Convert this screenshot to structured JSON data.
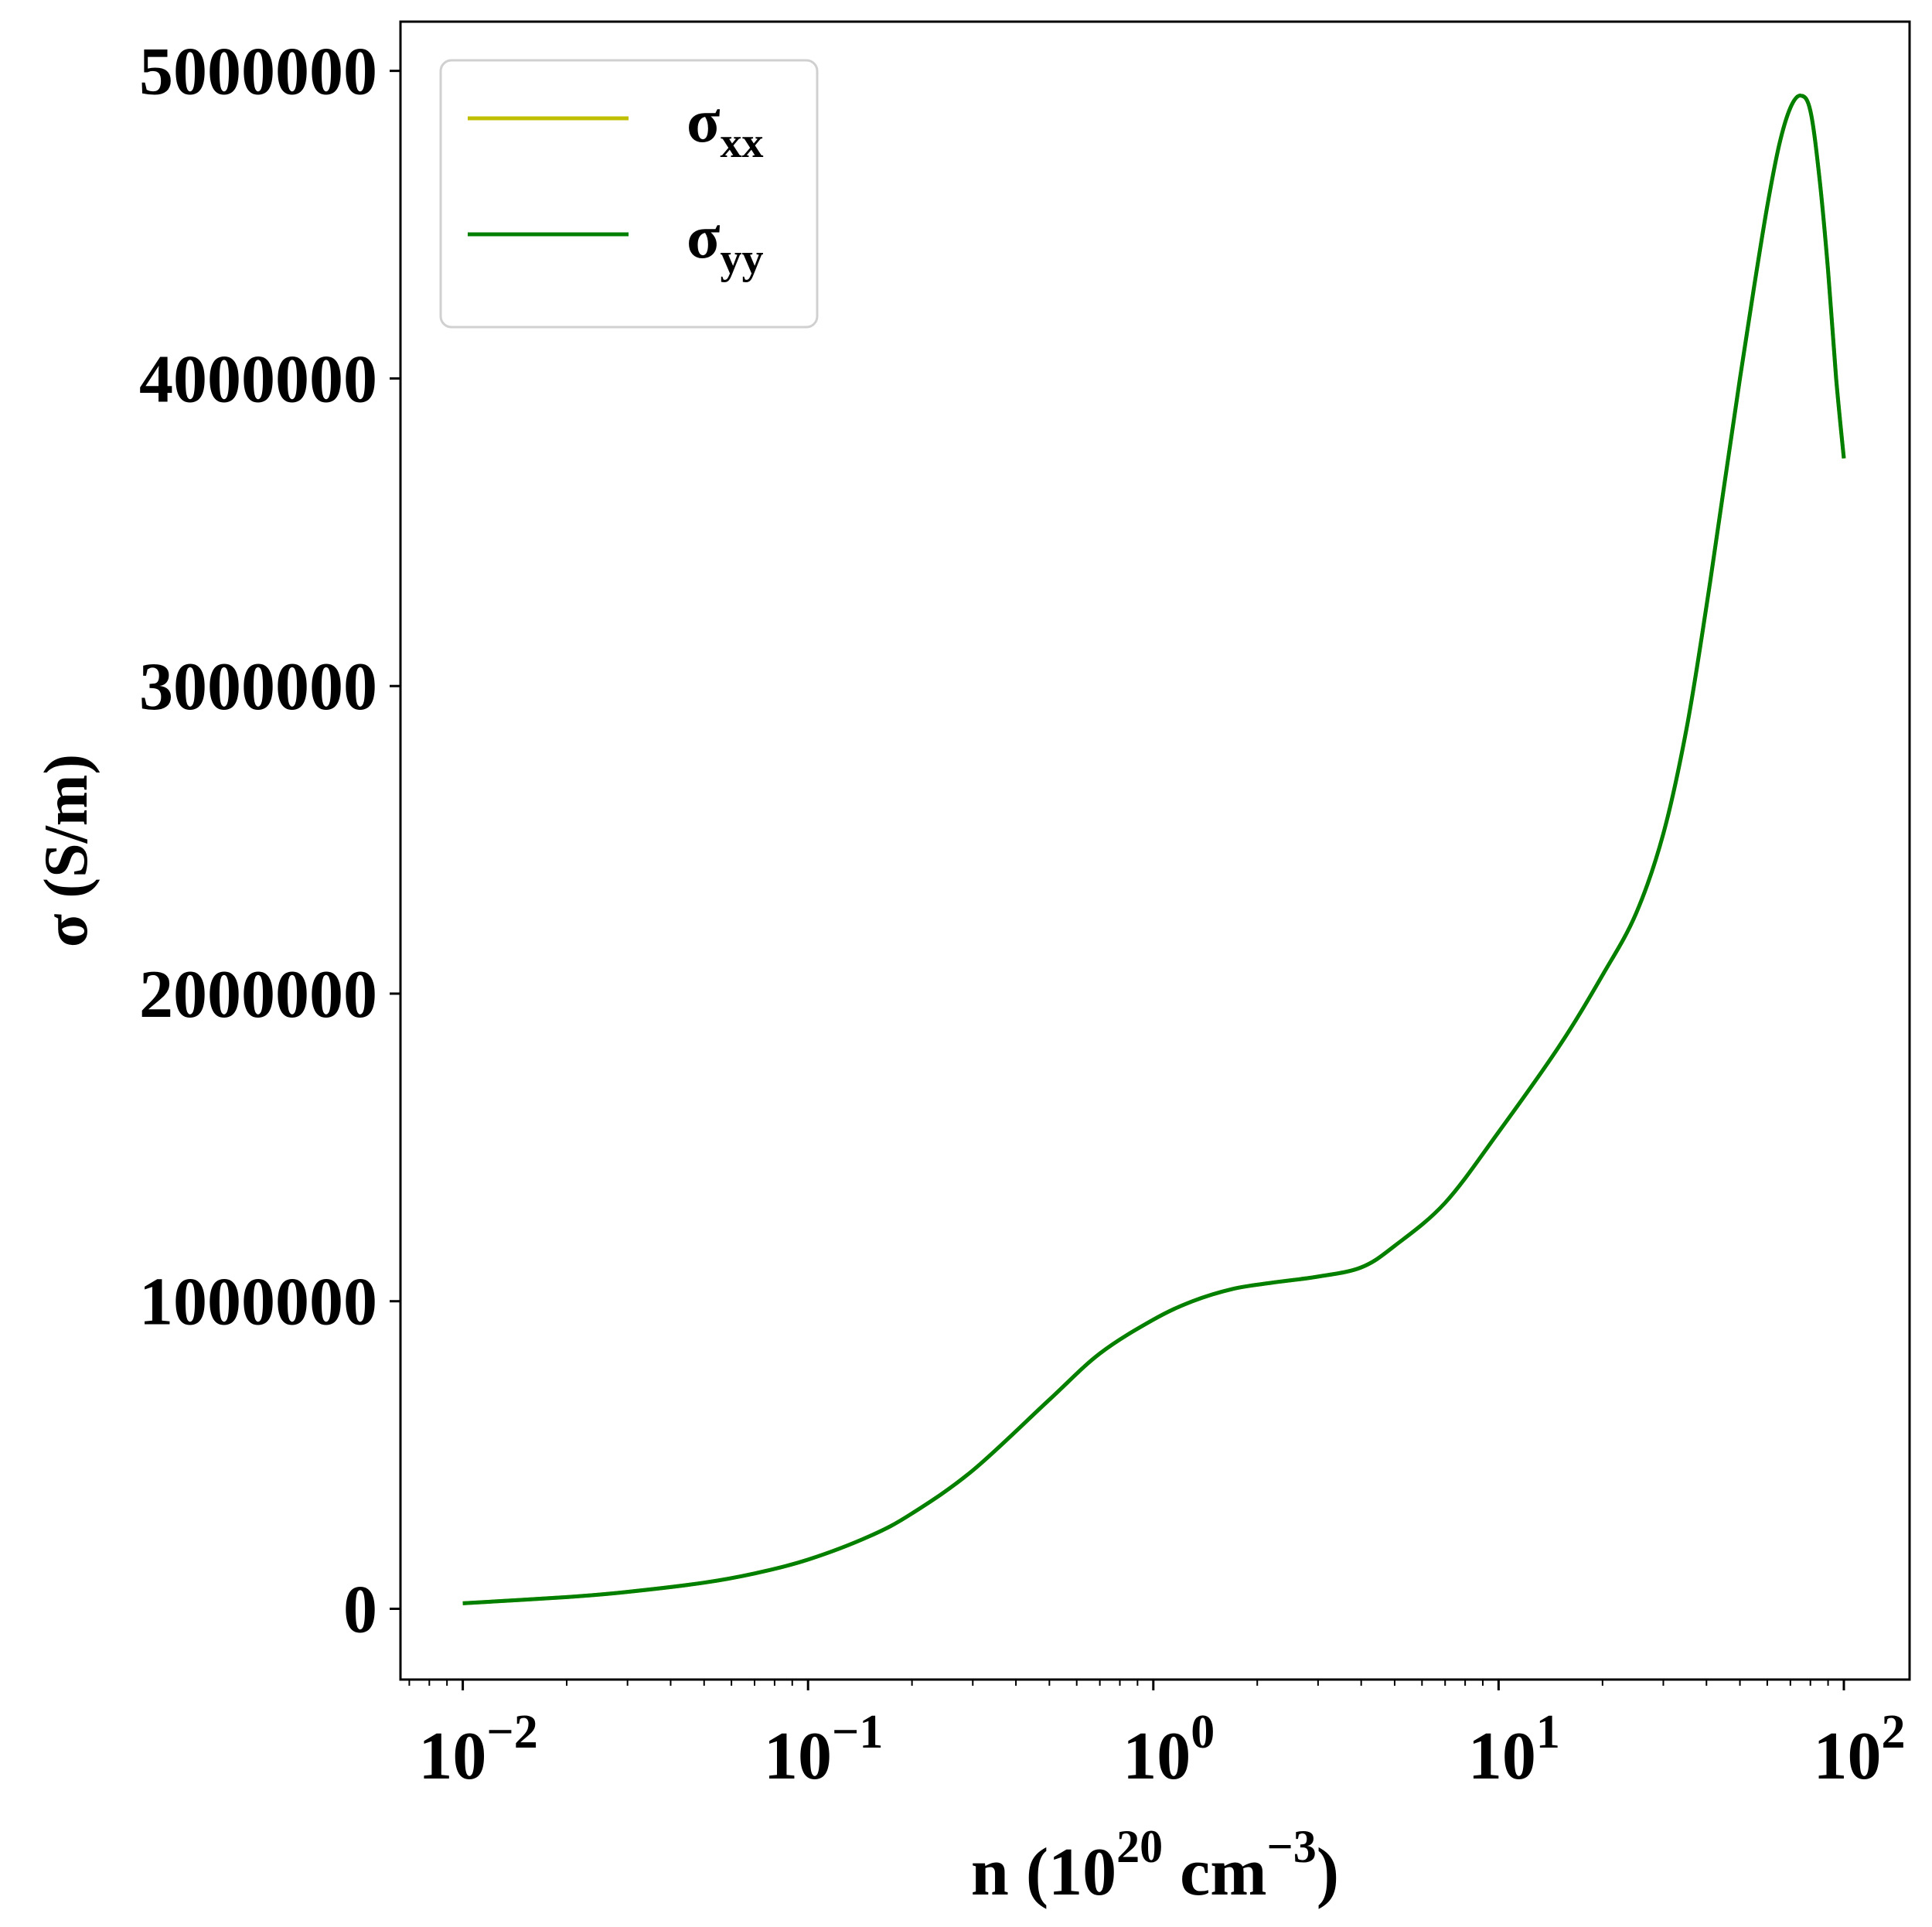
{
  "chart_data": {
    "type": "line",
    "title": "",
    "xlabel": {
      "base": "n (10",
      "sup1": "20",
      "mid": " cm",
      "sup2": "−3",
      "end": ")"
    },
    "ylabel": "σ (S/m)",
    "xscale": "log",
    "xlim": [
      0.0066,
      155
    ],
    "ylim": [
      -230000,
      5160000
    ],
    "grid": false,
    "legend_position": "top-left",
    "x_ticks": [
      {
        "value": 0.01,
        "base": "10",
        "exp": "−2"
      },
      {
        "value": 0.1,
        "base": "10",
        "exp": "−1"
      },
      {
        "value": 1,
        "base": "10",
        "exp": "0"
      },
      {
        "value": 10,
        "base": "10",
        "exp": "1"
      },
      {
        "value": 100,
        "base": "10",
        "exp": "2"
      }
    ],
    "y_ticks": [
      {
        "value": 0,
        "label": "0"
      },
      {
        "value": 1000000,
        "label": "1000000"
      },
      {
        "value": 2000000,
        "label": "2000000"
      },
      {
        "value": 3000000,
        "label": "3000000"
      },
      {
        "value": 4000000,
        "label": "4000000"
      },
      {
        "value": 5000000,
        "label": "5000000"
      }
    ],
    "series": [
      {
        "name": "σxx",
        "sym": "σ",
        "sub": "xx",
        "color": "#bfbf00",
        "x": [
          0.01,
          0.02,
          0.03,
          0.05,
          0.07,
          0.1,
          0.15,
          0.2,
          0.3,
          0.5,
          0.7,
          1.0,
          1.3,
          1.7,
          2.2,
          3.0,
          4.0,
          5.0,
          7.0,
          10,
          15,
          20,
          25,
          30,
          35,
          40,
          45,
          50,
          55,
          60,
          65,
          70,
          75,
          80,
          85,
          90,
          95,
          100
        ],
        "y": [
          18000,
          38000,
          55000,
          85000,
          115000,
          160000,
          235000,
          310000,
          450000,
          680000,
          830000,
          940000,
          1000000,
          1040000,
          1060000,
          1080000,
          1110000,
          1180000,
          1320000,
          1550000,
          1830000,
          2060000,
          2260000,
          2520000,
          2860000,
          3260000,
          3650000,
          4000000,
          4300000,
          4560000,
          4760000,
          4880000,
          4920000,
          4870000,
          4650000,
          4350000,
          4000000,
          3740000
        ]
      },
      {
        "name": "σyy",
        "sym": "σ",
        "sub": "yy",
        "color": "#007f00",
        "x": [
          0.01,
          0.02,
          0.03,
          0.05,
          0.07,
          0.1,
          0.15,
          0.2,
          0.3,
          0.5,
          0.7,
          1.0,
          1.3,
          1.7,
          2.2,
          3.0,
          4.0,
          5.0,
          7.0,
          10,
          15,
          20,
          25,
          30,
          35,
          40,
          45,
          50,
          55,
          60,
          65,
          70,
          75,
          80,
          85,
          90,
          95,
          100
        ],
        "y": [
          18000,
          38000,
          55000,
          85000,
          115000,
          160000,
          235000,
          310000,
          450000,
          680000,
          830000,
          940000,
          1000000,
          1040000,
          1060000,
          1080000,
          1110000,
          1180000,
          1320000,
          1550000,
          1830000,
          2060000,
          2260000,
          2520000,
          2860000,
          3260000,
          3650000,
          4000000,
          4300000,
          4560000,
          4760000,
          4880000,
          4920000,
          4870000,
          4650000,
          4350000,
          4000000,
          3740000
        ]
      }
    ]
  }
}
